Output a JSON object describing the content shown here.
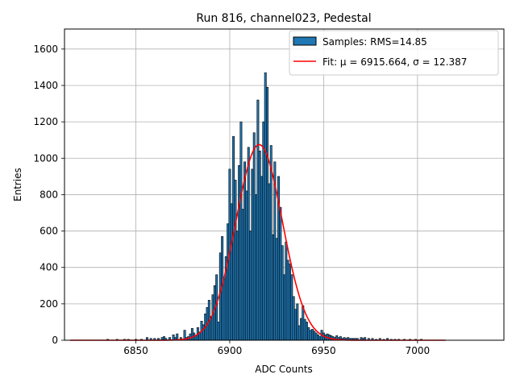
{
  "chart_data": {
    "type": "bar",
    "title": "Run 816, channel023, Pedestal",
    "xlabel": "ADC Counts",
    "ylabel": "Entries",
    "xlim": [
      6812,
      7046
    ],
    "ylim": [
      0,
      1710
    ],
    "x_ticks": [
      6850,
      6900,
      6950,
      7000
    ],
    "y_ticks": [
      0,
      200,
      400,
      600,
      800,
      1000,
      1200,
      1400,
      1600
    ],
    "grid": true,
    "legend_position": "top-right",
    "bin_width": 1,
    "series": [
      {
        "name": "Samples: RMS=14.85",
        "kind": "histogram",
        "color": "#1f77b4",
        "edge_color": "#000000",
        "points": [
          [
            6835,
            5
          ],
          [
            6840,
            5
          ],
          [
            6844,
            5
          ],
          [
            6846,
            5
          ],
          [
            6850,
            5
          ],
          [
            6853,
            5
          ],
          [
            6856,
            15
          ],
          [
            6858,
            10
          ],
          [
            6860,
            10
          ],
          [
            6862,
            10
          ],
          [
            6864,
            15
          ],
          [
            6865,
            20
          ],
          [
            6866,
            10
          ],
          [
            6868,
            15
          ],
          [
            6870,
            30
          ],
          [
            6871,
            15
          ],
          [
            6872,
            35
          ],
          [
            6874,
            15
          ],
          [
            6876,
            55
          ],
          [
            6877,
            15
          ],
          [
            6878,
            20
          ],
          [
            6879,
            35
          ],
          [
            6880,
            65
          ],
          [
            6881,
            40
          ],
          [
            6882,
            25
          ],
          [
            6883,
            70
          ],
          [
            6884,
            45
          ],
          [
            6885,
            105
          ],
          [
            6886,
            85
          ],
          [
            6887,
            145
          ],
          [
            6888,
            180
          ],
          [
            6889,
            220
          ],
          [
            6890,
            130
          ],
          [
            6891,
            250
          ],
          [
            6892,
            300
          ],
          [
            6893,
            360
          ],
          [
            6894,
            100
          ],
          [
            6895,
            480
          ],
          [
            6896,
            570
          ],
          [
            6897,
            340
          ],
          [
            6898,
            460
          ],
          [
            6899,
            640
          ],
          [
            6900,
            940
          ],
          [
            6901,
            750
          ],
          [
            6902,
            1120
          ],
          [
            6903,
            880
          ],
          [
            6904,
            600
          ],
          [
            6905,
            960
          ],
          [
            6906,
            1200
          ],
          [
            6907,
            720
          ],
          [
            6908,
            980
          ],
          [
            6909,
            820
          ],
          [
            6910,
            1060
          ],
          [
            6911,
            600
          ],
          [
            6912,
            940
          ],
          [
            6913,
            1140
          ],
          [
            6914,
            800
          ],
          [
            6915,
            1320
          ],
          [
            6916,
            1040
          ],
          [
            6917,
            900
          ],
          [
            6918,
            1200
          ],
          [
            6919,
            1470
          ],
          [
            6920,
            1390
          ],
          [
            6921,
            860
          ],
          [
            6922,
            1070
          ],
          [
            6923,
            580
          ],
          [
            6924,
            980
          ],
          [
            6925,
            560
          ],
          [
            6926,
            900
          ],
          [
            6927,
            730
          ],
          [
            6928,
            520
          ],
          [
            6929,
            360
          ],
          [
            6930,
            540
          ],
          [
            6931,
            440
          ],
          [
            6932,
            420
          ],
          [
            6933,
            360
          ],
          [
            6934,
            240
          ],
          [
            6935,
            170
          ],
          [
            6936,
            200
          ],
          [
            6937,
            80
          ],
          [
            6938,
            120
          ],
          [
            6939,
            190
          ],
          [
            6940,
            115
          ],
          [
            6941,
            100
          ],
          [
            6942,
            70
          ],
          [
            6943,
            55
          ],
          [
            6944,
            60
          ],
          [
            6945,
            50
          ],
          [
            6946,
            40
          ],
          [
            6947,
            30
          ],
          [
            6948,
            20
          ],
          [
            6949,
            55
          ],
          [
            6950,
            40
          ],
          [
            6951,
            30
          ],
          [
            6952,
            35
          ],
          [
            6953,
            30
          ],
          [
            6954,
            25
          ],
          [
            6955,
            20
          ],
          [
            6956,
            15
          ],
          [
            6957,
            25
          ],
          [
            6958,
            15
          ],
          [
            6959,
            20
          ],
          [
            6960,
            10
          ],
          [
            6961,
            15
          ],
          [
            6962,
            10
          ],
          [
            6963,
            15
          ],
          [
            6964,
            10
          ],
          [
            6965,
            10
          ],
          [
            6966,
            10
          ],
          [
            6967,
            10
          ],
          [
            6968,
            10
          ],
          [
            6970,
            15
          ],
          [
            6971,
            10
          ],
          [
            6972,
            15
          ],
          [
            6974,
            10
          ],
          [
            6976,
            10
          ],
          [
            6978,
            5
          ],
          [
            6980,
            10
          ],
          [
            6982,
            5
          ],
          [
            6984,
            10
          ],
          [
            6986,
            5
          ],
          [
            6988,
            5
          ],
          [
            6990,
            5
          ],
          [
            6993,
            5
          ],
          [
            6996,
            5
          ],
          [
            6999,
            5
          ],
          [
            7002,
            5
          ]
        ]
      },
      {
        "name": "Fit: μ = 6915.664, σ = 12.387",
        "kind": "gaussian-fit",
        "color": "#ff0000",
        "mu": 6915.664,
        "sigma": 12.387,
        "amplitude": 1075,
        "x_range": [
          6815,
          7015
        ]
      }
    ]
  }
}
